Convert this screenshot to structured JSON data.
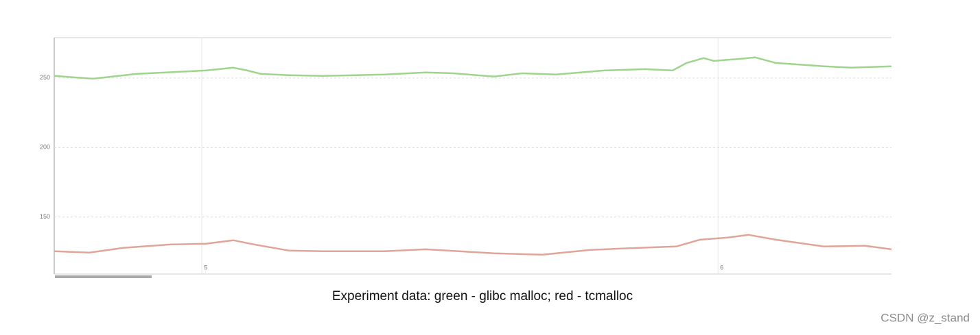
{
  "chart_data": {
    "type": "line",
    "title": "Experiment data: green - glibc malloc; red - tcmalloc",
    "watermark": "CSDN @z_stand",
    "series": [
      {
        "name": "glibc malloc",
        "color": "#9fd48c",
        "x": [
          4.714,
          4.789,
          4.875,
          5.008,
          5.061,
          5.088,
          5.114,
          5.168,
          5.234,
          5.354,
          5.434,
          5.487,
          5.566,
          5.62,
          5.686,
          5.779,
          5.859,
          5.912,
          5.939,
          5.972,
          5.992,
          6.045,
          6.072,
          6.112,
          6.205,
          6.258,
          6.336
        ],
        "values": [
          251.5,
          249.5,
          253,
          255.4,
          257.4,
          255.4,
          253,
          252,
          251.5,
          252.5,
          254,
          253.4,
          251,
          253.4,
          252.5,
          255.4,
          256.4,
          255.4,
          260.8,
          264.3,
          262.3,
          263.8,
          264.8,
          260.8,
          258.4,
          257.4,
          258.4
        ]
      },
      {
        "name": "tcmalloc",
        "color": "#e0a598",
        "x": [
          4.714,
          4.782,
          4.848,
          4.941,
          5.008,
          5.061,
          5.101,
          5.168,
          5.234,
          5.354,
          5.434,
          5.566,
          5.66,
          5.753,
          5.886,
          5.919,
          5.965,
          6.019,
          6.059,
          6.112,
          6.205,
          6.285,
          6.336
        ],
        "values": [
          125.4,
          124.4,
          127.8,
          130.3,
          130.8,
          133.3,
          130.3,
          125.9,
          125.4,
          125.4,
          126.8,
          123.9,
          122.9,
          126.4,
          128.4,
          128.8,
          133.7,
          135.2,
          137.2,
          133.7,
          128.8,
          129.3,
          126.8
        ]
      }
    ],
    "xlim": [
      4.714,
      6.336
    ],
    "xticks": [
      5,
      6
    ],
    "ylim": [
      109,
      279
    ],
    "yticks": [
      150,
      200,
      250
    ],
    "grid": true
  }
}
